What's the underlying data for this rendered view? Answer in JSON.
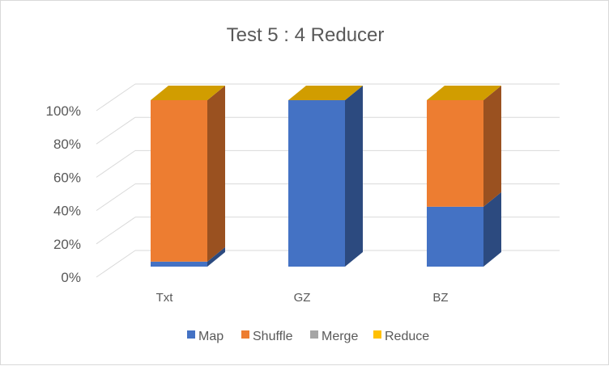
{
  "chart_data": {
    "type": "bar",
    "stacked": true,
    "percent": true,
    "three_d": true,
    "title": "Test 5 : 4 Reducer",
    "categories": [
      "Txt",
      "GZ",
      "BZ"
    ],
    "y_ticks": [
      "0%",
      "20%",
      "40%",
      "60%",
      "80%",
      "100%"
    ],
    "ylim": [
      0,
      100
    ],
    "grid": true,
    "legend_position": "bottom",
    "series": [
      {
        "name": "Map",
        "color": "#4472C4",
        "values": [
          3,
          100,
          36
        ]
      },
      {
        "name": "Shuffle",
        "color": "#ED7D31",
        "values": [
          97,
          0,
          64
        ]
      },
      {
        "name": "Merge",
        "color": "#A5A5A5",
        "values": [
          0,
          0,
          0
        ]
      },
      {
        "name": "Reduce",
        "color": "#FFC000",
        "values": [
          0,
          0,
          0
        ]
      }
    ]
  }
}
